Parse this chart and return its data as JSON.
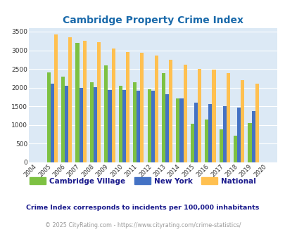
{
  "title": "Cambridge Property Crime Index",
  "title_color": "#1a6aab",
  "years": [
    2004,
    2005,
    2006,
    2007,
    2008,
    2009,
    2010,
    2011,
    2012,
    2013,
    2014,
    2015,
    2016,
    2017,
    2018,
    2019,
    2020
  ],
  "cambridge": [
    null,
    2400,
    2300,
    3200,
    2150,
    2600,
    2050,
    2150,
    1950,
    2380,
    1720,
    1040,
    1150,
    880,
    720,
    1060,
    null
  ],
  "newyork": [
    null,
    2100,
    2050,
    2000,
    2020,
    1940,
    1940,
    1920,
    1920,
    1820,
    1710,
    1600,
    1560,
    1510,
    1460,
    1370,
    null
  ],
  "national": [
    null,
    3420,
    3340,
    3260,
    3220,
    3040,
    2960,
    2940,
    2860,
    2750,
    2610,
    2510,
    2480,
    2380,
    2210,
    2110,
    null
  ],
  "cambridge_color": "#7dc142",
  "newyork_color": "#4472c4",
  "national_color": "#ffc050",
  "plot_bg": "#dce9f5",
  "ylim": [
    0,
    3600
  ],
  "yticks": [
    0,
    500,
    1000,
    1500,
    2000,
    2500,
    3000,
    3500
  ],
  "footnote1": "Crime Index corresponds to incidents per 100,000 inhabitants",
  "footnote2": "© 2025 CityRating.com - https://www.cityrating.com/crime-statistics/",
  "footnote1_color": "#1a1a8c",
  "footnote2_color": "#999999",
  "legend_labels": [
    "Cambridge Village",
    "New York",
    "National"
  ],
  "bar_width": 0.25
}
